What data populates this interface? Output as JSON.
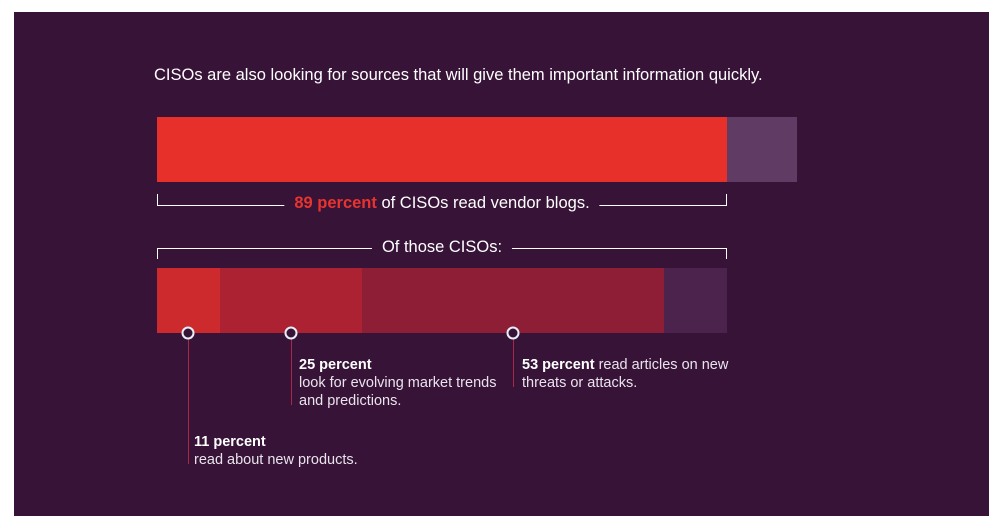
{
  "headline": "CISOs are also looking for sources that will give them important information quickly.",
  "colors": {
    "background": "#371338",
    "blog_bar": "#e8302a",
    "blog_rest": "#603c64",
    "seg_products": "#cc2a2d",
    "seg_trends": "#ad2232",
    "seg_threats": "#8d1e36",
    "seg_rest": "#4c234d",
    "highlight": "#e8342f"
  },
  "chart_data": [
    {
      "type": "bar",
      "orientation": "horizontal",
      "stacked": true,
      "caption": {
        "value": "89 percent",
        "rest": " of CISOs read vendor blogs."
      },
      "series": [
        {
          "value": 89
        },
        {
          "value": 11
        }
      ]
    },
    {
      "type": "bar",
      "orientation": "horizontal",
      "stacked": true,
      "caption": "Of those CISOs:",
      "series": [
        {
          "value": 11,
          "label_value": "11 percent",
          "label_text": "read about new products."
        },
        {
          "value": 25,
          "label_value": "25 percent",
          "label_text": "look for evolving market trends and predictions."
        },
        {
          "value": 53,
          "label_value": "53 percent",
          "label_text": " read articles on new threats or attacks."
        },
        {
          "value": 11
        }
      ]
    }
  ]
}
